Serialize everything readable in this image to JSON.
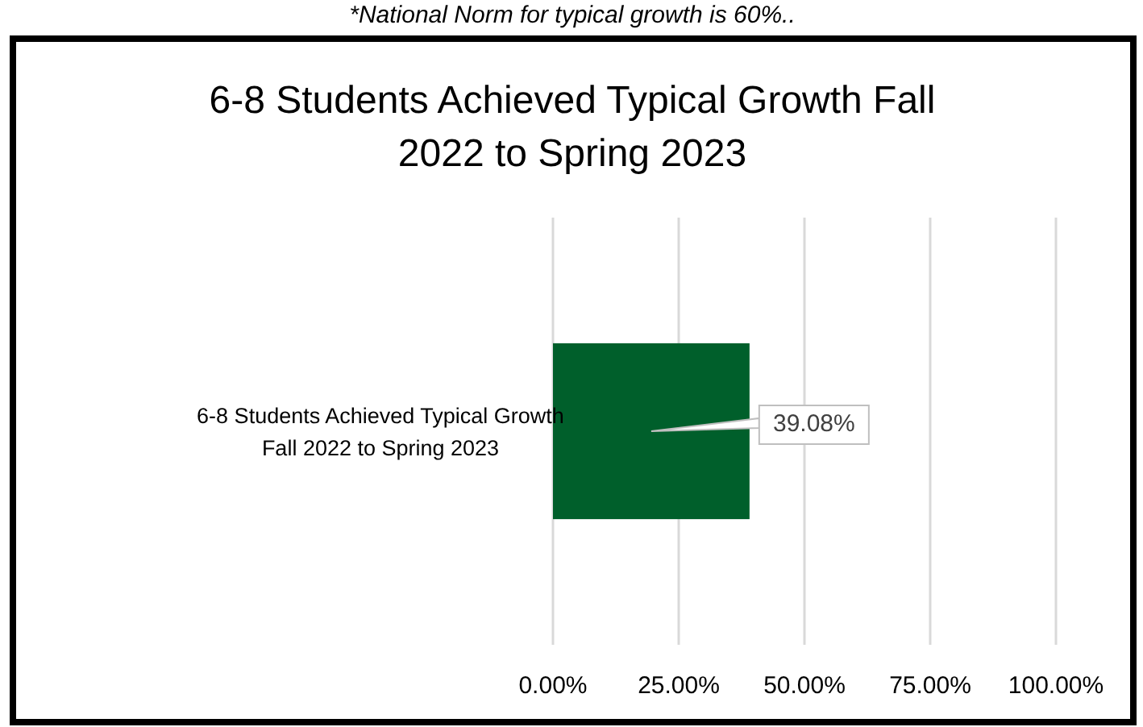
{
  "chart_data": {
    "type": "bar",
    "orientation": "horizontal",
    "title": "6-8 Students Achieved Typical Growth Fall 2022 to Spring 2023",
    "annotations": [
      "*National Norm for typical growth is 60%.."
    ],
    "categories": [
      "6-8 Students Achieved Typical Growth Fall 2022 to Spring 2023"
    ],
    "values": [
      39.08
    ],
    "color": "#005f2b",
    "value_labels": [
      "39.08%"
    ],
    "xlim": [
      0,
      100
    ],
    "xticks": [
      {
        "value": 0,
        "label": "0.00%"
      },
      {
        "value": 25,
        "label": "25.00%"
      },
      {
        "value": 50,
        "label": "50.00%"
      },
      {
        "value": 75,
        "label": "75.00%"
      },
      {
        "value": 100,
        "label": "100.00%"
      }
    ],
    "grid": "x"
  }
}
